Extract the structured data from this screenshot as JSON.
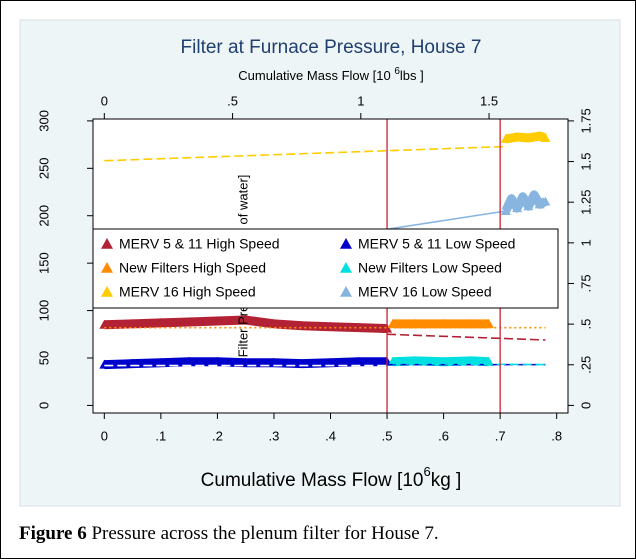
{
  "chart_data": {
    "type": "scatter",
    "title": "Filter at Furnace Pressure, House 7",
    "x_label": {
      "text": "Cumulative Mass Flow [10",
      "exponent": "6",
      "unit": "kg ]"
    },
    "x2_label": {
      "text": "Cumulative Mass Flow [10 ",
      "exponent": "6",
      "unit": "lbs ]"
    },
    "y_label": "Filter Pressure [inches of water]",
    "xlim": [
      -0.02,
      0.82
    ],
    "xticks": [
      0,
      {
        "value": 0.1,
        "label": ".1"
      },
      {
        "value": 0.2,
        "label": ".2"
      },
      {
        "value": 0.3,
        "label": ".3"
      },
      {
        "value": 0.4,
        "label": ".4"
      },
      {
        "value": 0.5,
        "label": ".5"
      },
      {
        "value": 0.6,
        "label": ".6"
      },
      {
        "value": 0.7,
        "label": ".7"
      },
      {
        "value": 0.8,
        "label": ".8"
      }
    ],
    "x2lim": [
      -0.0441,
      1.8078
    ],
    "x2ticks": [
      0,
      {
        "value": 0.5,
        "label": ".5"
      },
      1,
      1.5
    ],
    "ylim": [
      -8,
      302
    ],
    "yticks": [
      0,
      50,
      100,
      150,
      200,
      250,
      300
    ],
    "y2lim": [
      -0.0467,
      1.7617
    ],
    "y2ticks": [
      0,
      {
        "value": 0.25,
        "label": ".25"
      },
      {
        "value": 0.5,
        "label": ".5"
      },
      {
        "value": 0.75,
        "label": ".75"
      },
      1,
      1.25,
      1.5,
      1.75
    ],
    "vlines": {
      "color": "#cc2233",
      "values": [
        0.5,
        0.7
      ]
    },
    "series": [
      {
        "name": "MERV 5 & 11 High Speed",
        "color": "#b22234",
        "x": [
          0,
          0.05,
          0.1,
          0.15,
          0.2,
          0.25,
          0.3,
          0.35,
          0.4,
          0.45,
          0.5
        ],
        "values": [
          85,
          86,
          87,
          88,
          89,
          90,
          86,
          84,
          83,
          82,
          81
        ]
      },
      {
        "name": "MERV 5 & 11 Low Speed",
        "color": "#0000cd",
        "x": [
          0,
          0.05,
          0.1,
          0.15,
          0.2,
          0.25,
          0.3,
          0.35,
          0.4,
          0.45,
          0.5
        ],
        "values": [
          43,
          44,
          45,
          46,
          46,
          45,
          45,
          44,
          45,
          46,
          46
        ]
      },
      {
        "name": "New Filters High Speed",
        "color": "#ff8c00",
        "x": [
          0.51,
          0.55,
          0.6,
          0.65,
          0.68
        ],
        "values": [
          86,
          86,
          86,
          86,
          86
        ]
      },
      {
        "name": "New Filters Low Speed",
        "color": "#00e0e0",
        "x": [
          0.51,
          0.55,
          0.6,
          0.65,
          0.68
        ],
        "values": [
          46,
          47,
          46,
          47,
          46
        ]
      },
      {
        "name": "MERV 16 High Speed",
        "color": "#ffcc00",
        "x": [
          0.71,
          0.73,
          0.75,
          0.77,
          0.78
        ],
        "values": [
          281,
          283,
          282,
          284,
          282
        ]
      },
      {
        "name": "MERV 16 Low Speed",
        "color": "#87b5e0",
        "x": [
          0.71,
          0.72,
          0.73,
          0.74,
          0.75,
          0.76,
          0.77,
          0.78
        ],
        "values": [
          205,
          218,
          208,
          220,
          210,
          222,
          212,
          215
        ]
      }
    ],
    "fits": [
      {
        "color": "#ffcc00",
        "dash": "dashed",
        "x": [
          0,
          0.71
        ],
        "values": [
          258,
          273
        ]
      },
      {
        "color": "#87b5e0",
        "dash": "solid",
        "x": [
          0,
          0.71
        ],
        "values": [
          140,
          205
        ]
      },
      {
        "color": "#ff8c00",
        "dash": "dotted",
        "x": [
          0,
          0.78
        ],
        "values": [
          82,
          82
        ]
      },
      {
        "color": "#b22234",
        "dash": "dashed",
        "x": [
          0.5,
          0.78
        ],
        "values": [
          75,
          69
        ]
      },
      {
        "color": "#ffffff",
        "dash": "dashed",
        "x": [
          0,
          0.5
        ],
        "values": [
          42,
          42
        ]
      },
      {
        "color": "#0000cd",
        "dash": "dashed",
        "x": [
          0.5,
          0.78
        ],
        "values": [
          43,
          43
        ]
      },
      {
        "color": "#00e0e0",
        "dash": "dashed",
        "x": [
          0.51,
          0.78
        ],
        "values": [
          44,
          43
        ]
      }
    ]
  },
  "caption": {
    "label": "Figure 6",
    "text": "Pressure across the plenum filter for House 7."
  }
}
